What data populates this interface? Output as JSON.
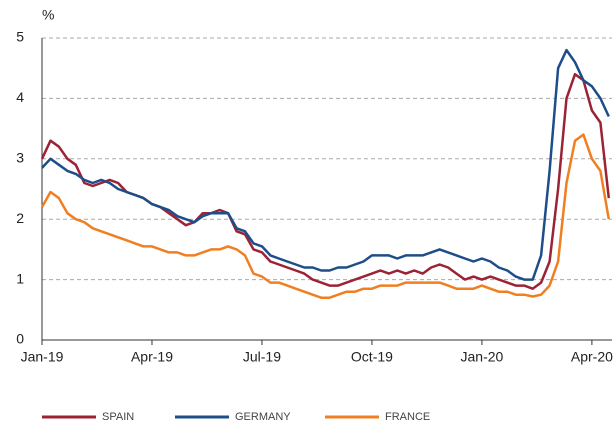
{
  "chart_data": {
    "type": "line",
    "y_label": "%",
    "categories": [
      "Jan-19",
      null,
      null,
      null,
      null,
      null,
      null,
      null,
      null,
      null,
      null,
      null,
      null,
      "Apr-19",
      null,
      null,
      null,
      null,
      null,
      null,
      null,
      null,
      null,
      null,
      null,
      null,
      "Jul-19",
      null,
      null,
      null,
      null,
      null,
      null,
      null,
      null,
      null,
      null,
      null,
      null,
      "Oct-19",
      null,
      null,
      null,
      null,
      null,
      null,
      null,
      null,
      null,
      null,
      null,
      null,
      "Jan-20",
      null,
      null,
      null,
      null,
      null,
      null,
      null,
      null,
      null,
      null,
      null,
      null,
      "Apr-20",
      null,
      null
    ],
    "series": [
      {
        "name": "SPAIN",
        "color": "#9b2335",
        "values": [
          3.0,
          3.3,
          3.2,
          3.0,
          2.9,
          2.6,
          2.55,
          2.6,
          2.65,
          2.6,
          2.45,
          2.4,
          2.35,
          2.25,
          2.2,
          2.1,
          2.0,
          1.9,
          1.95,
          2.1,
          2.1,
          2.15,
          2.1,
          1.8,
          1.75,
          1.5,
          1.45,
          1.3,
          1.25,
          1.2,
          1.15,
          1.1,
          1.0,
          0.95,
          0.9,
          0.9,
          0.95,
          1.0,
          1.05,
          1.1,
          1.15,
          1.1,
          1.15,
          1.1,
          1.15,
          1.1,
          1.2,
          1.25,
          1.2,
          1.1,
          1.0,
          1.05,
          1.0,
          1.05,
          1.0,
          0.95,
          0.9,
          0.9,
          0.85,
          0.95,
          1.3,
          2.5,
          4.0,
          4.4,
          4.3,
          3.8,
          3.6,
          2.35
        ]
      },
      {
        "name": "GERMANY",
        "color": "#1d4e89",
        "values": [
          2.85,
          3.0,
          2.9,
          2.8,
          2.75,
          2.65,
          2.6,
          2.65,
          2.6,
          2.5,
          2.45,
          2.4,
          2.35,
          2.25,
          2.2,
          2.15,
          2.05,
          2.0,
          1.95,
          2.05,
          2.1,
          2.1,
          2.1,
          1.85,
          1.8,
          1.6,
          1.55,
          1.4,
          1.35,
          1.3,
          1.25,
          1.2,
          1.2,
          1.15,
          1.15,
          1.2,
          1.2,
          1.25,
          1.3,
          1.4,
          1.4,
          1.4,
          1.35,
          1.4,
          1.4,
          1.4,
          1.45,
          1.5,
          1.45,
          1.4,
          1.35,
          1.3,
          1.35,
          1.3,
          1.2,
          1.15,
          1.05,
          1.0,
          1.0,
          1.4,
          2.8,
          4.5,
          4.8,
          4.6,
          4.3,
          4.2,
          4.0,
          3.7
        ]
      },
      {
        "name": "FRANCE",
        "color": "#f07f22",
        "values": [
          2.2,
          2.45,
          2.35,
          2.1,
          2.0,
          1.95,
          1.85,
          1.8,
          1.75,
          1.7,
          1.65,
          1.6,
          1.55,
          1.55,
          1.5,
          1.45,
          1.45,
          1.4,
          1.4,
          1.45,
          1.5,
          1.5,
          1.55,
          1.5,
          1.4,
          1.1,
          1.05,
          0.95,
          0.95,
          0.9,
          0.85,
          0.8,
          0.75,
          0.7,
          0.7,
          0.75,
          0.8,
          0.8,
          0.85,
          0.85,
          0.9,
          0.9,
          0.9,
          0.95,
          0.95,
          0.95,
          0.95,
          0.95,
          0.9,
          0.85,
          0.85,
          0.85,
          0.9,
          0.85,
          0.8,
          0.8,
          0.75,
          0.75,
          0.72,
          0.75,
          0.9,
          1.3,
          2.6,
          3.3,
          3.4,
          3.0,
          2.8,
          2.0
        ]
      }
    ],
    "ylim": [
      0,
      5
    ],
    "yticks": [
      0,
      1,
      2,
      3,
      4,
      5
    ],
    "grid": true
  }
}
